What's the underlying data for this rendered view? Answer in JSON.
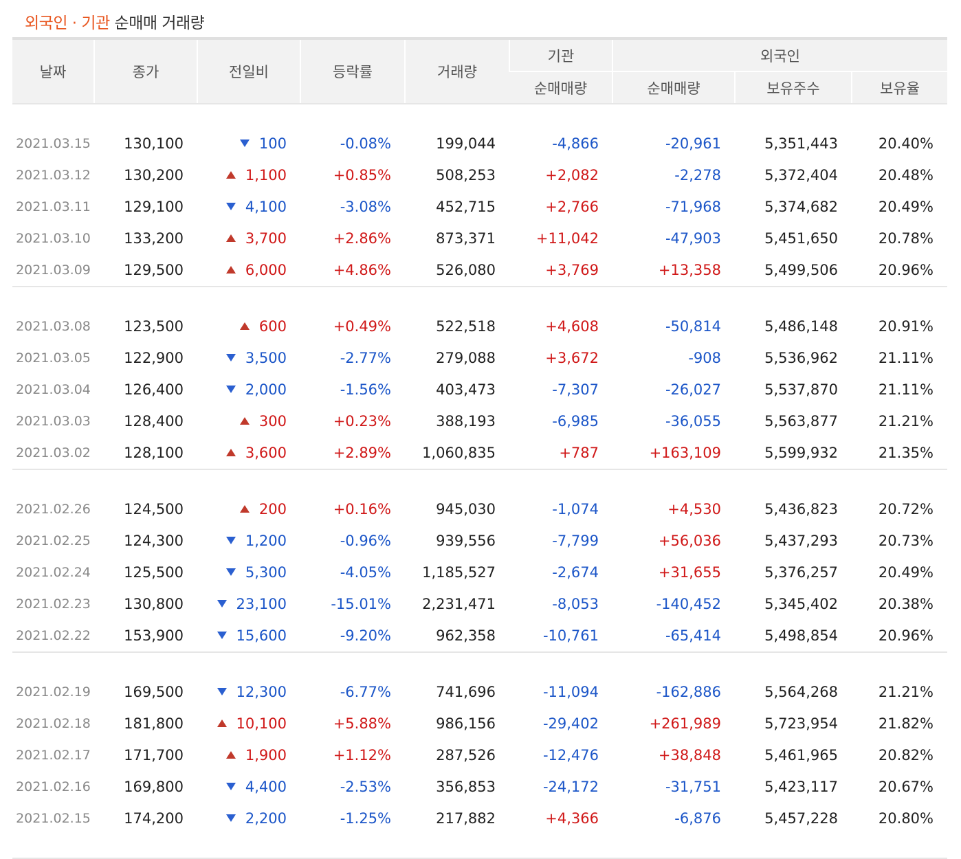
{
  "title": {
    "highlight": "외국인 · 기관",
    "rest": "순매매 거래량"
  },
  "headers": {
    "date": "날짜",
    "close": "종가",
    "change": "전일비",
    "rate": "등락률",
    "volume": "거래량",
    "inst_group": "기관",
    "foreign_group": "외국인",
    "inst_net": "순매매량",
    "foreign_net": "순매매량",
    "holdings": "보유주수",
    "ratio": "보유율"
  },
  "colors": {
    "up": "#d01818",
    "down": "#1c56c8",
    "accent": "#e8551e"
  },
  "groups": [
    {
      "rows": [
        {
          "date": "2021.03.15",
          "close": "130,100",
          "dir": "down",
          "change": "100",
          "rate": "-0.08%",
          "volume": "199,044",
          "inst": "-4,866",
          "foreign": "-20,961",
          "holdings": "5,351,443",
          "ratio": "20.40%"
        },
        {
          "date": "2021.03.12",
          "close": "130,200",
          "dir": "up",
          "change": "1,100",
          "rate": "+0.85%",
          "volume": "508,253",
          "inst": "+2,082",
          "foreign": "-2,278",
          "holdings": "5,372,404",
          "ratio": "20.48%"
        },
        {
          "date": "2021.03.11",
          "close": "129,100",
          "dir": "down",
          "change": "4,100",
          "rate": "-3.08%",
          "volume": "452,715",
          "inst": "+2,766",
          "foreign": "-71,968",
          "holdings": "5,374,682",
          "ratio": "20.49%"
        },
        {
          "date": "2021.03.10",
          "close": "133,200",
          "dir": "up",
          "change": "3,700",
          "rate": "+2.86%",
          "volume": "873,371",
          "inst": "+11,042",
          "foreign": "-47,903",
          "holdings": "5,451,650",
          "ratio": "20.78%"
        },
        {
          "date": "2021.03.09",
          "close": "129,500",
          "dir": "up",
          "change": "6,000",
          "rate": "+4.86%",
          "volume": "526,080",
          "inst": "+3,769",
          "foreign": "+13,358",
          "holdings": "5,499,506",
          "ratio": "20.96%"
        }
      ]
    },
    {
      "rows": [
        {
          "date": "2021.03.08",
          "close": "123,500",
          "dir": "up",
          "change": "600",
          "rate": "+0.49%",
          "volume": "522,518",
          "inst": "+4,608",
          "foreign": "-50,814",
          "holdings": "5,486,148",
          "ratio": "20.91%"
        },
        {
          "date": "2021.03.05",
          "close": "122,900",
          "dir": "down",
          "change": "3,500",
          "rate": "-2.77%",
          "volume": "279,088",
          "inst": "+3,672",
          "foreign": "-908",
          "holdings": "5,536,962",
          "ratio": "21.11%"
        },
        {
          "date": "2021.03.04",
          "close": "126,400",
          "dir": "down",
          "change": "2,000",
          "rate": "-1.56%",
          "volume": "403,473",
          "inst": "-7,307",
          "foreign": "-26,027",
          "holdings": "5,537,870",
          "ratio": "21.11%"
        },
        {
          "date": "2021.03.03",
          "close": "128,400",
          "dir": "up",
          "change": "300",
          "rate": "+0.23%",
          "volume": "388,193",
          "inst": "-6,985",
          "foreign": "-36,055",
          "holdings": "5,563,877",
          "ratio": "21.21%"
        },
        {
          "date": "2021.03.02",
          "close": "128,100",
          "dir": "up",
          "change": "3,600",
          "rate": "+2.89%",
          "volume": "1,060,835",
          "inst": "+787",
          "foreign": "+163,109",
          "holdings": "5,599,932",
          "ratio": "21.35%"
        }
      ]
    },
    {
      "rows": [
        {
          "date": "2021.02.26",
          "close": "124,500",
          "dir": "up",
          "change": "200",
          "rate": "+0.16%",
          "volume": "945,030",
          "inst": "-1,074",
          "foreign": "+4,530",
          "holdings": "5,436,823",
          "ratio": "20.72%"
        },
        {
          "date": "2021.02.25",
          "close": "124,300",
          "dir": "down",
          "change": "1,200",
          "rate": "-0.96%",
          "volume": "939,556",
          "inst": "-7,799",
          "foreign": "+56,036",
          "holdings": "5,437,293",
          "ratio": "20.73%"
        },
        {
          "date": "2021.02.24",
          "close": "125,500",
          "dir": "down",
          "change": "5,300",
          "rate": "-4.05%",
          "volume": "1,185,527",
          "inst": "-2,674",
          "foreign": "+31,655",
          "holdings": "5,376,257",
          "ratio": "20.49%"
        },
        {
          "date": "2021.02.23",
          "close": "130,800",
          "dir": "down",
          "change": "23,100",
          "rate": "-15.01%",
          "volume": "2,231,471",
          "inst": "-8,053",
          "foreign": "-140,452",
          "holdings": "5,345,402",
          "ratio": "20.38%"
        },
        {
          "date": "2021.02.22",
          "close": "153,900",
          "dir": "down",
          "change": "15,600",
          "rate": "-9.20%",
          "volume": "962,358",
          "inst": "-10,761",
          "foreign": "-65,414",
          "holdings": "5,498,854",
          "ratio": "20.96%"
        }
      ]
    },
    {
      "rows": [
        {
          "date": "2021.02.19",
          "close": "169,500",
          "dir": "down",
          "change": "12,300",
          "rate": "-6.77%",
          "volume": "741,696",
          "inst": "-11,094",
          "foreign": "-162,886",
          "holdings": "5,564,268",
          "ratio": "21.21%"
        },
        {
          "date": "2021.02.18",
          "close": "181,800",
          "dir": "up",
          "change": "10,100",
          "rate": "+5.88%",
          "volume": "986,156",
          "inst": "-29,402",
          "foreign": "+261,989",
          "holdings": "5,723,954",
          "ratio": "21.82%"
        },
        {
          "date": "2021.02.17",
          "close": "171,700",
          "dir": "up",
          "change": "1,900",
          "rate": "+1.12%",
          "volume": "287,526",
          "inst": "-12,476",
          "foreign": "+38,848",
          "holdings": "5,461,965",
          "ratio": "20.82%"
        },
        {
          "date": "2021.02.16",
          "close": "169,800",
          "dir": "down",
          "change": "4,400",
          "rate": "-2.53%",
          "volume": "356,853",
          "inst": "-24,172",
          "foreign": "-31,751",
          "holdings": "5,423,117",
          "ratio": "20.67%"
        },
        {
          "date": "2021.02.15",
          "close": "174,200",
          "dir": "down",
          "change": "2,200",
          "rate": "-1.25%",
          "volume": "217,882",
          "inst": "+4,366",
          "foreign": "-6,876",
          "holdings": "5,457,228",
          "ratio": "20.80%"
        }
      ]
    }
  ]
}
